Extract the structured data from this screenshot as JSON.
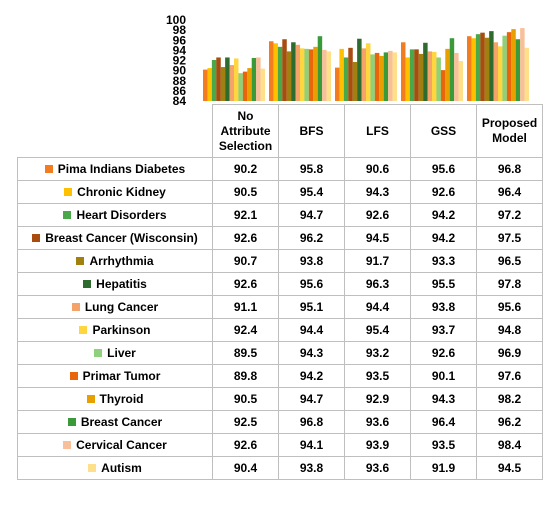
{
  "chart_data": {
    "type": "bar",
    "categories": [
      "No Attribute Selection",
      "BFS",
      "LFS",
      "GSS",
      "Proposed Model"
    ],
    "ylim": [
      84,
      100
    ],
    "y_ticks": [
      "100",
      "98",
      "96",
      "94",
      "92",
      "90",
      "88",
      "86",
      "84"
    ],
    "grid": false,
    "legend": "table-rows",
    "series": [
      {
        "name": "Pima Indians Diabetes",
        "color": "#f37b20",
        "values": [
          90.2,
          95.8,
          90.6,
          95.6,
          96.8
        ]
      },
      {
        "name": "Chronic Kidney",
        "color": "#ffc000",
        "values": [
          90.5,
          95.4,
          94.3,
          92.6,
          96.4
        ]
      },
      {
        "name": "Heart Disorders",
        "color": "#4aa84a",
        "values": [
          92.1,
          94.7,
          92.6,
          94.2,
          97.2
        ]
      },
      {
        "name": "Breast Cancer (Wisconsin)",
        "color": "#a84c10",
        "values": [
          92.6,
          96.2,
          94.5,
          94.2,
          97.5
        ]
      },
      {
        "name": "Arrhythmia",
        "color": "#a08010",
        "values": [
          90.7,
          93.8,
          91.7,
          93.3,
          96.5
        ]
      },
      {
        "name": "Hepatitis",
        "color": "#2e6b2e",
        "values": [
          92.6,
          95.6,
          96.3,
          95.5,
          97.8
        ]
      },
      {
        "name": "Lung Cancer",
        "color": "#f4a46a",
        "values": [
          91.1,
          95.1,
          94.4,
          93.8,
          95.6
        ]
      },
      {
        "name": "Parkinson",
        "color": "#ffd640",
        "values": [
          92.4,
          94.4,
          95.4,
          93.7,
          94.8
        ]
      },
      {
        "name": "Liver",
        "color": "#8fd07a",
        "values": [
          89.5,
          94.3,
          93.2,
          92.6,
          96.9
        ]
      },
      {
        "name": "Primar Tumor",
        "color": "#e8650c",
        "values": [
          89.8,
          94.2,
          93.5,
          90.1,
          97.6
        ]
      },
      {
        "name": "Thyroid",
        "color": "#e8a000",
        "values": [
          90.5,
          94.7,
          92.9,
          94.3,
          98.2
        ]
      },
      {
        "name": "Breast Cancer",
        "color": "#3a9a3a",
        "values": [
          92.5,
          96.8,
          93.6,
          96.4,
          96.2
        ]
      },
      {
        "name": "Cervical Cancer",
        "color": "#f8c09a",
        "values": [
          92.6,
          94.1,
          93.9,
          93.5,
          98.4
        ]
      },
      {
        "name": "Autism",
        "color": "#ffe08a",
        "values": [
          90.4,
          93.8,
          93.6,
          91.9,
          94.5
        ]
      }
    ]
  }
}
